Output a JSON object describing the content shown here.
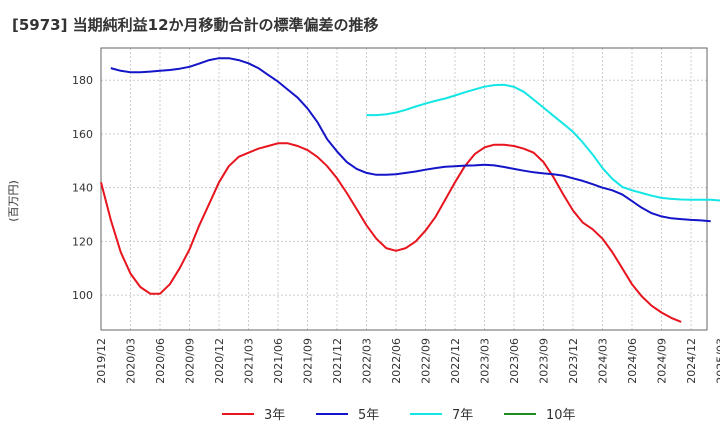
{
  "chart_data": {
    "type": "line",
    "title": "[5973]  当期純利益12か月移動合計の標準偏差の推移",
    "ylabel": "(百万円)",
    "xlabel": "",
    "ylim": [
      87,
      192
    ],
    "yticks": [
      100,
      120,
      140,
      160,
      180
    ],
    "xticks": [
      "2019/12",
      "2020/03",
      "2020/06",
      "2020/09",
      "2020/12",
      "2021/03",
      "2021/06",
      "2021/09",
      "2021/12",
      "2022/03",
      "2022/06",
      "2022/09",
      "2022/12",
      "2023/03",
      "2023/06",
      "2023/09",
      "2023/12",
      "2024/03",
      "2024/06",
      "2024/09",
      "2024/12",
      "2025/03"
    ],
    "grid": true,
    "legend_position": "bottom",
    "series": [
      {
        "name": "3年",
        "color": "#e8141e",
        "start": "2019/12",
        "values": [
          142,
          128,
          116,
          108,
          103,
          100.5,
          100.5,
          104,
          110,
          117,
          126,
          134,
          142,
          148,
          151.5,
          153,
          154.5,
          155.5,
          156.5,
          156.5,
          155.5,
          154,
          151.5,
          148,
          143.5,
          138,
          132,
          126,
          121,
          117.5,
          116.5,
          117.5,
          120,
          124,
          129,
          135.5,
          142,
          148,
          152.5,
          155,
          156,
          156,
          155.5,
          154.5,
          153,
          149.5,
          144,
          137.5,
          131.5,
          127,
          124.5,
          121,
          116,
          110,
          104,
          99.5,
          96,
          93.5,
          91.5,
          90
        ]
      },
      {
        "name": "5年",
        "color": "#1414c8",
        "start": "2020/01",
        "values": [
          184.5,
          183.5,
          183,
          183,
          183.2,
          183.5,
          183.8,
          184.3,
          185,
          186.2,
          187.5,
          188.2,
          188.2,
          187.5,
          186.3,
          184.5,
          182,
          179.5,
          176.5,
          173.5,
          169.5,
          164.5,
          158,
          153.5,
          149.5,
          147,
          145.5,
          144.8,
          144.8,
          145,
          145.5,
          146,
          146.7,
          147.3,
          147.8,
          148,
          148.2,
          148.3,
          148.5,
          148.3,
          147.7,
          147,
          146.3,
          145.7,
          145.3,
          145,
          144.5,
          143.5,
          142.5,
          141.3,
          140,
          139,
          137.5,
          135,
          132.5,
          130.5,
          129.3,
          128.6,
          128.3,
          128,
          127.8,
          127.5
        ]
      },
      {
        "name": "7年",
        "color": "#14e6e6",
        "start": "2022/03",
        "values": [
          167,
          167,
          167.3,
          168,
          169,
          170.2,
          171.3,
          172.3,
          173.2,
          174.3,
          175.5,
          176.6,
          177.6,
          178.2,
          178.3,
          177.5,
          175.7,
          172.8,
          169.8,
          166.8,
          163.8,
          160.8,
          156.8,
          152.3,
          147.3,
          143.3,
          140.3,
          139,
          138,
          137,
          136.2,
          135.8,
          135.6,
          135.5,
          135.5,
          135.5,
          135.2,
          134.5,
          133.8
        ]
      },
      {
        "name": "10年",
        "color": "#1e8c1e",
        "values": []
      }
    ]
  }
}
